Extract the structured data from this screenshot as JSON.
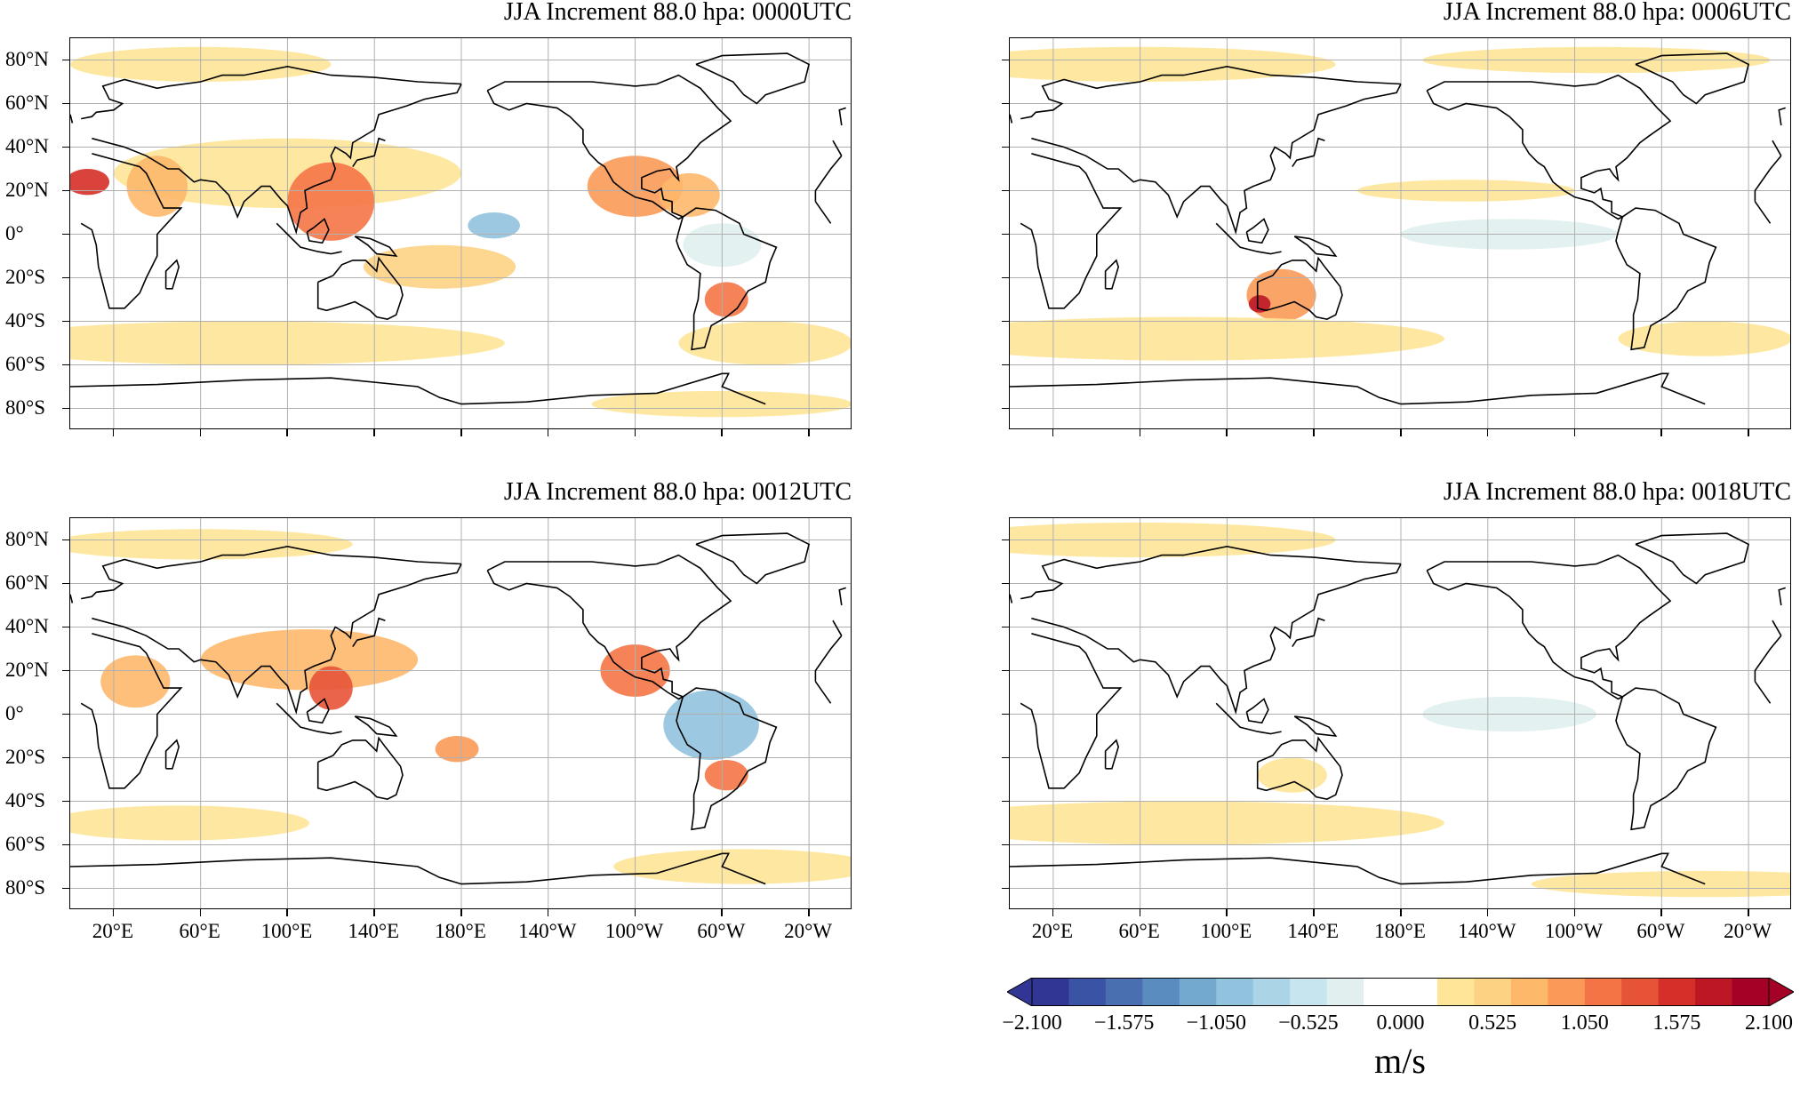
{
  "panels": [
    {
      "id": "p0000",
      "title": "JJA Increment 88.0 hpa:  0000UTC",
      "lat_labels": true,
      "lon_labels": false
    },
    {
      "id": "p0006",
      "title": "JJA Increment 88.0 hpa:  0006UTC",
      "lat_labels": false,
      "lon_labels": false
    },
    {
      "id": "p0012",
      "title": "JJA Increment 88.0 hpa:  0012UTC",
      "lat_labels": true,
      "lon_labels": true
    },
    {
      "id": "p0018",
      "title": "JJA Increment 88.0 hpa:  0018UTC",
      "lat_labels": false,
      "lon_labels": true
    }
  ],
  "lat_ticks": [
    "80°N",
    "60°N",
    "40°N",
    "20°N",
    "0°",
    "20°S",
    "40°S",
    "60°S",
    "80°S"
  ],
  "lon_ticks": [
    "20°E",
    "60°E",
    "100°E",
    "140°E",
    "180°E",
    "140°W",
    "100°W",
    "60°W",
    "20°W"
  ],
  "colorbar": {
    "units": "m/s",
    "tick_labels": [
      "−2.100",
      "−1.575",
      "−1.050",
      "−0.525",
      "0.000",
      "0.525",
      "1.050",
      "1.575",
      "2.100"
    ],
    "colors": [
      "#313695",
      "#3a53a4",
      "#4a6fb0",
      "#5b8cc0",
      "#74a9cf",
      "#91c3de",
      "#abd5e6",
      "#c7e5ef",
      "#e1efef",
      "#ffffff",
      "#ffffff",
      "#fee597",
      "#fdd283",
      "#fdb86a",
      "#fb9a58",
      "#f57446",
      "#e75337",
      "#d62f27",
      "#bd1726",
      "#a50026"
    ]
  },
  "fields": {
    "p0000": [
      {
        "lon": 100,
        "lat": 28,
        "rx": 80,
        "ry": 16,
        "c": "#fee597"
      },
      {
        "lon": 120,
        "lat": 15,
        "rx": 20,
        "ry": 18,
        "c": "#f57446"
      },
      {
        "lon": 8,
        "lat": 24,
        "rx": 10,
        "ry": 6,
        "c": "#d62f27"
      },
      {
        "lon": 40,
        "lat": 22,
        "rx": 14,
        "ry": 14,
        "c": "#fdb86a"
      },
      {
        "lon": -100,
        "lat": 22,
        "rx": 22,
        "ry": 14,
        "c": "#fb9a58"
      },
      {
        "lon": -75,
        "lat": 18,
        "rx": 14,
        "ry": 10,
        "c": "#fdb86a"
      },
      {
        "lon": -58,
        "lat": -30,
        "rx": 10,
        "ry": 8,
        "c": "#f57446"
      },
      {
        "lon": 170,
        "lat": -15,
        "rx": 35,
        "ry": 10,
        "c": "#fdd283"
      },
      {
        "lon": -165,
        "lat": 4,
        "rx": 12,
        "ry": 6,
        "c": "#91c3de"
      },
      {
        "lon": -60,
        "lat": -5,
        "rx": 18,
        "ry": 10,
        "c": "#e1efef"
      },
      {
        "lon": 80,
        "lat": -50,
        "rx": 120,
        "ry": 10,
        "c": "#fee597"
      },
      {
        "lon": -40,
        "lat": -50,
        "rx": 40,
        "ry": 10,
        "c": "#fee597"
      },
      {
        "lon": 60,
        "lat": 78,
        "rx": 60,
        "ry": 8,
        "c": "#fee597"
      },
      {
        "lon": -60,
        "lat": -78,
        "rx": 60,
        "ry": 6,
        "c": "#fee597"
      }
    ],
    "p0006": [
      {
        "lon": 125,
        "lat": -28,
        "rx": 16,
        "ry": 12,
        "c": "#fb9a58"
      },
      {
        "lon": 115,
        "lat": -32,
        "rx": 5,
        "ry": 4,
        "c": "#bd1726"
      },
      {
        "lon": -130,
        "lat": 0,
        "rx": 50,
        "ry": 7,
        "c": "#e1efef"
      },
      {
        "lon": -150,
        "lat": 20,
        "rx": 50,
        "ry": 5,
        "c": "#fee597"
      },
      {
        "lon": 80,
        "lat": -48,
        "rx": 120,
        "ry": 10,
        "c": "#fee597"
      },
      {
        "lon": -40,
        "lat": -48,
        "rx": 40,
        "ry": 8,
        "c": "#fee597"
      },
      {
        "lon": 60,
        "lat": 78,
        "rx": 90,
        "ry": 8,
        "c": "#fee597"
      },
      {
        "lon": -90,
        "lat": 80,
        "rx": 80,
        "ry": 6,
        "c": "#fee597"
      }
    ],
    "p0012": [
      {
        "lon": 110,
        "lat": 25,
        "rx": 50,
        "ry": 14,
        "c": "#fdb86a"
      },
      {
        "lon": 120,
        "lat": 12,
        "rx": 10,
        "ry": 10,
        "c": "#e75337"
      },
      {
        "lon": -100,
        "lat": 20,
        "rx": 16,
        "ry": 12,
        "c": "#f57446"
      },
      {
        "lon": -65,
        "lat": -5,
        "rx": 22,
        "ry": 16,
        "c": "#91c3de"
      },
      {
        "lon": -58,
        "lat": -28,
        "rx": 10,
        "ry": 7,
        "c": "#f57446"
      },
      {
        "lon": 178,
        "lat": -16,
        "rx": 10,
        "ry": 6,
        "c": "#fb9a58"
      },
      {
        "lon": 30,
        "lat": 15,
        "rx": 16,
        "ry": 12,
        "c": "#fdb86a"
      },
      {
        "lon": 50,
        "lat": -50,
        "rx": 60,
        "ry": 8,
        "c": "#fee597"
      },
      {
        "lon": -50,
        "lat": -70,
        "rx": 60,
        "ry": 8,
        "c": "#fee597"
      },
      {
        "lon": 60,
        "lat": 78,
        "rx": 70,
        "ry": 7,
        "c": "#fee597"
      }
    ],
    "p0018": [
      {
        "lon": -130,
        "lat": 0,
        "rx": 40,
        "ry": 8,
        "c": "#e1efef"
      },
      {
        "lon": 80,
        "lat": -50,
        "rx": 120,
        "ry": 10,
        "c": "#fee597"
      },
      {
        "lon": -40,
        "lat": -78,
        "rx": 80,
        "ry": 6,
        "c": "#fee597"
      },
      {
        "lon": 60,
        "lat": 80,
        "rx": 90,
        "ry": 8,
        "c": "#fee597"
      },
      {
        "lon": 130,
        "lat": -28,
        "rx": 16,
        "ry": 8,
        "c": "#fee597"
      }
    ]
  }
}
